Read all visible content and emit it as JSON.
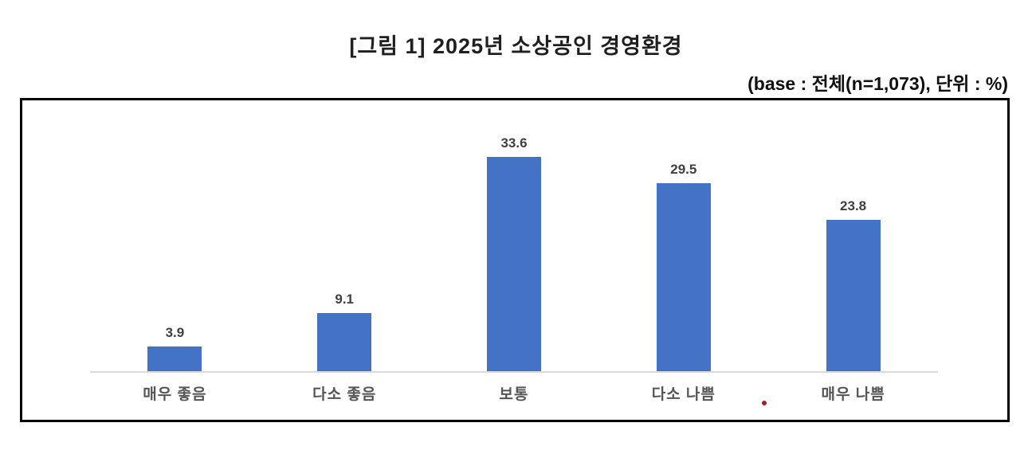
{
  "header": {
    "title": "[그림 1] 2025년 소상공인 경영환경",
    "subtitle": "(base : 전체(n=1,073), 단위 : %)"
  },
  "colors": {
    "bar": "#4472c4",
    "axis_line": "#dadada",
    "box_border": "#000000",
    "value_label": "#3f3f3f",
    "category_label": "#555555",
    "red_dot": "#a02028"
  },
  "annotation": {
    "red_dot_glyph": "."
  },
  "chart_data": {
    "type": "bar",
    "title": "[그림 1] 2025년 소상공인 경영환경",
    "base_note": "(base : 전체(n=1,073), 단위 : %)",
    "unit": "%",
    "categories": [
      "매우 좋음",
      "다소 좋음",
      "보통",
      "다소 나쁨",
      "매우 나쁨"
    ],
    "values": [
      3.9,
      9.1,
      33.6,
      29.5,
      23.8
    ],
    "xlabel": "",
    "ylabel": "",
    "ylim": [
      0,
      42.5
    ],
    "grid": false,
    "legend": false,
    "value_labels_shown": true
  }
}
